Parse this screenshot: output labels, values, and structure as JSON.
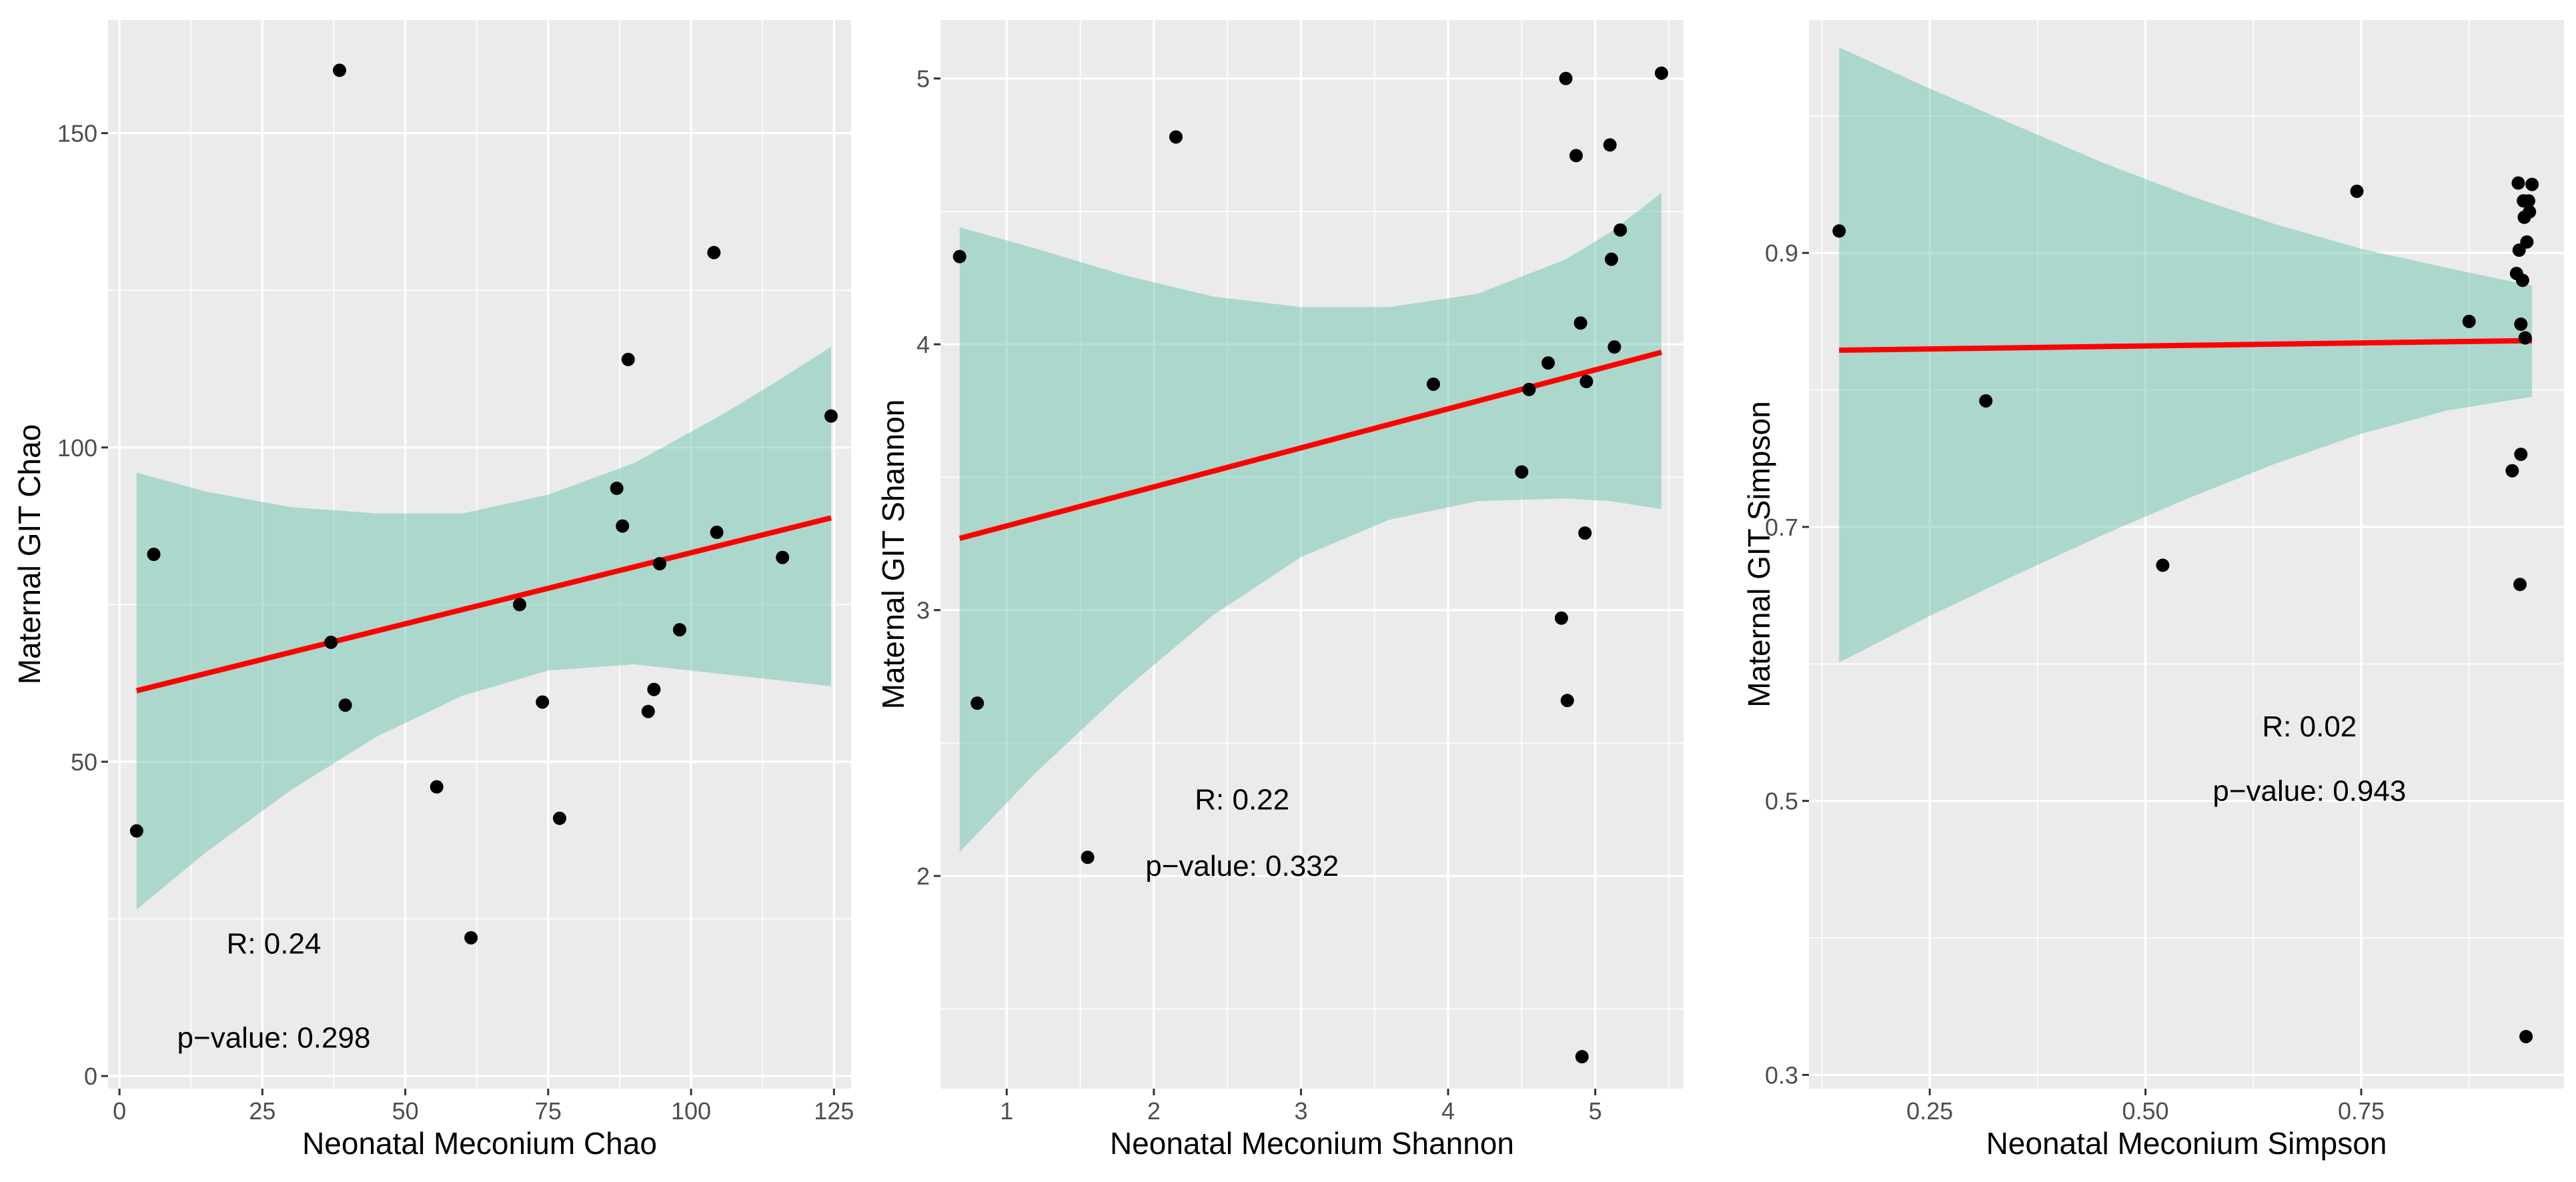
{
  "colors": {
    "panel_background": "#ebebeb",
    "grid": "#ffffff",
    "ribbon": "#5fbfa6",
    "fit_line": "#ff0000",
    "points": "#000000"
  },
  "chart_data": [
    {
      "type": "scatter",
      "xlabel": "Neonatal Meconium Chao",
      "ylabel": "Maternal GIT Chao",
      "xlim": [
        -2,
        128
      ],
      "ylim": [
        -2,
        168
      ],
      "x_ticks": [
        0,
        25,
        50,
        75,
        100,
        125
      ],
      "x_tick_labels": [
        "0",
        "25",
        "50",
        "75",
        "100",
        "125"
      ],
      "y_ticks": [
        0,
        50,
        100,
        150
      ],
      "y_tick_labels": [
        "0",
        "50",
        "100",
        "150"
      ],
      "points": [
        [
          3,
          39
        ],
        [
          6,
          83
        ],
        [
          37,
          69
        ],
        [
          38.5,
          160
        ],
        [
          39.5,
          59
        ],
        [
          55.5,
          46
        ],
        [
          61.5,
          22
        ],
        [
          70,
          75
        ],
        [
          74,
          59.5
        ],
        [
          77,
          41
        ],
        [
          87,
          93.5
        ],
        [
          88,
          87.5
        ],
        [
          89,
          114
        ],
        [
          92.5,
          58
        ],
        [
          93.5,
          61.5
        ],
        [
          94.5,
          81.5
        ],
        [
          98,
          71
        ],
        [
          104,
          131
        ],
        [
          104.5,
          86.5
        ],
        [
          116,
          82.5
        ],
        [
          124.5,
          105
        ]
      ],
      "fit": {
        "x": [
          3,
          124.5
        ],
        "y": [
          61.3,
          88.8
        ]
      },
      "ribbon": {
        "x": [
          3,
          15,
          30,
          45,
          60,
          75,
          90,
          105,
          115,
          124.5
        ],
        "lower": [
          26.5,
          35.5,
          45.5,
          54,
          60.5,
          64.5,
          65.5,
          64,
          63,
          62
        ],
        "upper": [
          96,
          93,
          90.5,
          89.5,
          89.5,
          92.5,
          97.5,
          105,
          110.5,
          116
        ]
      },
      "annotations": [
        {
          "text": "R: 0.24",
          "x": 27,
          "y": 19.5
        },
        {
          "text": "p−value: 0.298",
          "x": 27,
          "y": 4.5
        }
      ]
    },
    {
      "type": "scatter",
      "xlabel": "Neonatal Meconium Shannon",
      "ylabel": "Maternal GIT Shannon",
      "xlim": [
        0.55,
        5.6
      ],
      "ylim": [
        1.2,
        5.22
      ],
      "x_ticks": [
        1,
        2,
        3,
        4,
        5
      ],
      "x_tick_labels": [
        "1",
        "2",
        "3",
        "4",
        "5"
      ],
      "y_ticks": [
        2,
        3,
        4,
        5
      ],
      "y_tick_labels": [
        "2",
        "3",
        "4",
        "5"
      ],
      "points": [
        [
          0.68,
          4.33
        ],
        [
          0.8,
          2.65
        ],
        [
          1.55,
          2.07
        ],
        [
          2.15,
          4.78
        ],
        [
          3.9,
          3.85
        ],
        [
          4.5,
          3.52
        ],
        [
          4.55,
          3.83
        ],
        [
          4.68,
          3.93
        ],
        [
          4.77,
          2.97
        ],
        [
          4.8,
          5.0
        ],
        [
          4.81,
          2.66
        ],
        [
          4.87,
          4.71
        ],
        [
          4.9,
          4.08
        ],
        [
          4.91,
          1.32
        ],
        [
          4.93,
          3.29
        ],
        [
          4.94,
          3.86
        ],
        [
          5.1,
          4.75
        ],
        [
          5.11,
          4.32
        ],
        [
          5.13,
          3.99
        ],
        [
          5.17,
          4.43
        ],
        [
          5.45,
          5.02
        ]
      ],
      "fit": {
        "x": [
          0.68,
          5.45
        ],
        "y": [
          3.27,
          3.97
        ]
      },
      "ribbon": {
        "x": [
          0.68,
          1.2,
          1.8,
          2.4,
          3.0,
          3.6,
          4.2,
          4.8,
          5.1,
          5.45
        ],
        "lower": [
          2.09,
          2.39,
          2.7,
          2.98,
          3.2,
          3.34,
          3.41,
          3.42,
          3.41,
          3.38
        ],
        "upper": [
          4.44,
          4.36,
          4.26,
          4.18,
          4.14,
          4.14,
          4.19,
          4.32,
          4.42,
          4.57
        ]
      },
      "annotations": [
        {
          "text": "R: 0.22",
          "x": 2.6,
          "y": 2.25
        },
        {
          "text": "p−value: 0.332",
          "x": 2.6,
          "y": 2.0
        }
      ]
    },
    {
      "type": "scatter",
      "xlabel": "Neonatal Meconium Simpson",
      "ylabel": "Maternal GIT Simpson",
      "xlim": [
        0.11,
        0.985
      ],
      "ylim": [
        0.29,
        1.07
      ],
      "x_ticks": [
        0.25,
        0.5,
        0.75
      ],
      "x_tick_labels": [
        "0.25",
        "0.50",
        "0.75"
      ],
      "y_ticks": [
        0.3,
        0.5,
        0.7,
        0.9
      ],
      "y_tick_labels": [
        "0.3",
        "0.5",
        "0.7",
        "0.9"
      ],
      "points": [
        [
          0.145,
          0.916
        ],
        [
          0.315,
          0.792
        ],
        [
          0.52,
          0.672
        ],
        [
          0.745,
          0.945
        ],
        [
          0.875,
          0.85
        ],
        [
          0.925,
          0.741
        ],
        [
          0.93,
          0.885
        ],
        [
          0.932,
          0.951
        ],
        [
          0.933,
          0.902
        ],
        [
          0.934,
          0.658
        ],
        [
          0.935,
          0.753
        ],
        [
          0.935,
          0.848
        ],
        [
          0.937,
          0.88
        ],
        [
          0.938,
          0.938
        ],
        [
          0.939,
          0.926
        ],
        [
          0.94,
          0.838
        ],
        [
          0.941,
          0.328
        ],
        [
          0.942,
          0.908
        ],
        [
          0.944,
          0.938
        ],
        [
          0.945,
          0.93
        ],
        [
          0.948,
          0.95
        ]
      ],
      "fit": {
        "x": [
          0.145,
          0.948
        ],
        "y": [
          0.829,
          0.836
        ]
      },
      "ribbon": {
        "x": [
          0.145,
          0.25,
          0.35,
          0.45,
          0.55,
          0.65,
          0.75,
          0.85,
          0.948
        ],
        "lower": [
          0.601,
          0.635,
          0.665,
          0.694,
          0.721,
          0.746,
          0.768,
          0.785,
          0.795
        ],
        "upper": [
          1.05,
          1.02,
          0.993,
          0.966,
          0.942,
          0.921,
          0.903,
          0.889,
          0.876
        ]
      },
      "annotations": [
        {
          "text": "R: 0.02",
          "x": 0.69,
          "y": 0.547
        },
        {
          "text": "p−value: 0.943",
          "x": 0.69,
          "y": 0.5
        }
      ]
    }
  ]
}
